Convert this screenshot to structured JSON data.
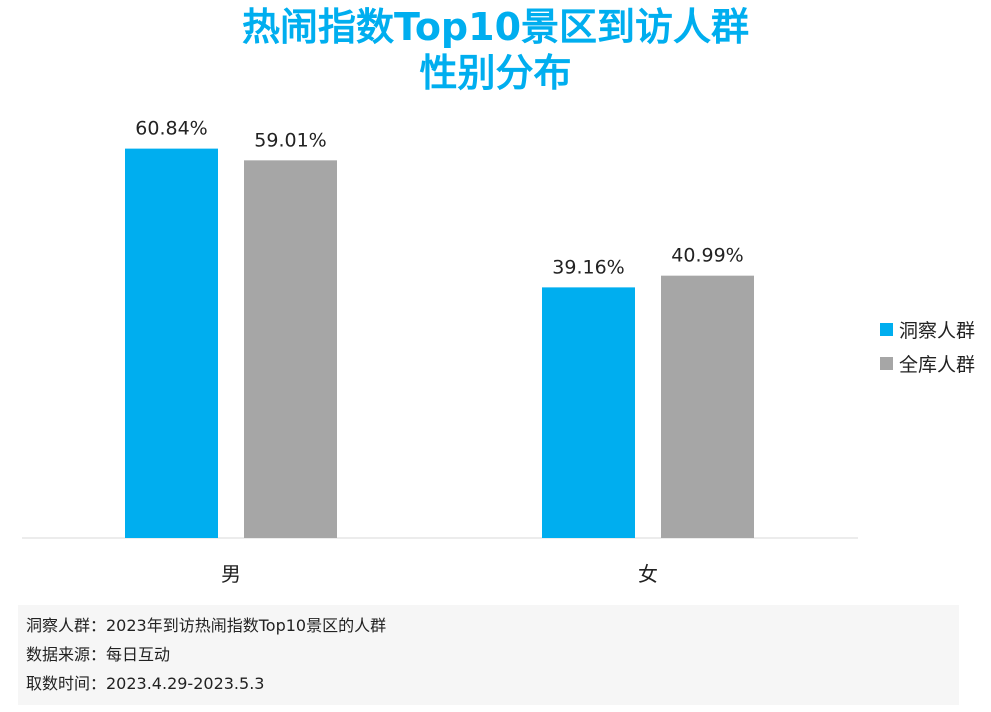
{
  "title": {
    "line1": "热闹指数Top10景区到访人群",
    "line2": "性别分布"
  },
  "chart_data": {
    "type": "bar",
    "categories": [
      "男",
      "女"
    ],
    "series": [
      {
        "name": "洞察人群",
        "values": [
          60.84,
          39.16
        ],
        "labels": [
          "60.84%",
          "39.16%"
        ],
        "color": "#00aeef"
      },
      {
        "name": "全库人群",
        "values": [
          59.01,
          40.99
        ],
        "labels": [
          "59.01%",
          "40.99%"
        ],
        "color": "#a6a6a6"
      }
    ],
    "ylim": [
      0,
      70
    ],
    "grid": false,
    "legend_position": "right"
  },
  "notes": [
    "洞察人群：2023年到访热闹指数Top10景区的人群",
    "数据来源：每日互动",
    "取数时间：2023.4.29-2023.5.3"
  ]
}
